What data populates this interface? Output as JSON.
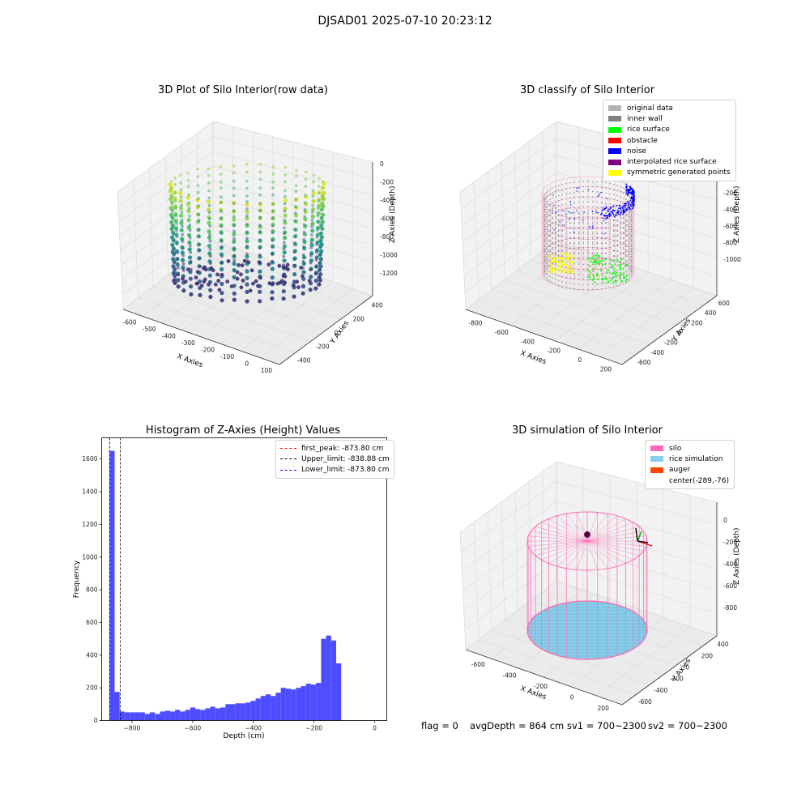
{
  "figure": {
    "suptitle": "DJSAD01 2025-07-10 20:23:12"
  },
  "colors": {
    "original_data": "#b3b3b3",
    "inner_wall": "#808080",
    "rice_surface": "#00ff00",
    "obstacle": "#ff0000",
    "noise": "#0000ff",
    "interpolated": "#800080",
    "symmetric": "#ffff00",
    "silo": "#ff69b4",
    "rice_sim": "#87ceeb",
    "auger": "#ff4500",
    "hist_bar": "#4d4dff"
  },
  "chart_data": [
    {
      "type": "scatter",
      "title": "3D Plot of Silo Interior(row data)",
      "xlabel": "X Axies",
      "ylabel": "Y Axies",
      "zlabel": "Z Axies (Depth)",
      "x_ticks": [
        "-600",
        "-500",
        "-400",
        "-300",
        "-200",
        "-100",
        "0",
        "100"
      ],
      "y_ticks": [
        "400",
        "200",
        "0",
        "-200",
        "-400"
      ],
      "z_ticks": [
        "0",
        "-200",
        "-400",
        "-600",
        "-800",
        "-1000",
        "-1200"
      ],
      "colormap": "viridis"
    },
    {
      "type": "scatter",
      "title": "3D classify of Silo Interior",
      "xlabel": "X Axies",
      "ylabel": "Y Axies",
      "zlabel": "Z Axies (Depth)",
      "x_ticks": [
        "-800",
        "-600",
        "-400",
        "-200",
        "0",
        "200"
      ],
      "y_ticks": [
        "600",
        "400",
        "200",
        "0",
        "-200",
        "-400",
        "-600"
      ],
      "z_ticks": [
        "-200",
        "-400",
        "-600",
        "-800",
        "-1000"
      ],
      "legend_position": "top-right",
      "legend": [
        {
          "label": "original data",
          "color": "#b3b3b3"
        },
        {
          "label": "inner wall",
          "color": "#808080"
        },
        {
          "label": "rice surface",
          "color": "#00ff00"
        },
        {
          "label": "obstacle",
          "color": "#ff0000"
        },
        {
          "label": "noise",
          "color": "#0000ff"
        },
        {
          "label": "interpolated rice surface",
          "color": "#800080"
        },
        {
          "label": "symmetric generated points",
          "color": "#ffff00"
        }
      ]
    },
    {
      "type": "bar",
      "title": "Histogram of Z-Axies (Height) Values",
      "xlabel": "Depth (cm)",
      "ylabel": "Frequency",
      "xlim": [
        -900,
        40
      ],
      "ylim": [
        0,
        1730
      ],
      "x_ticks": [
        -800,
        -600,
        -400,
        -200,
        0
      ],
      "y_ticks": [
        0,
        200,
        400,
        600,
        800,
        1000,
        1200,
        1400,
        1600
      ],
      "bin_start": -873.8,
      "bin_width": 16.6,
      "values": [
        1650,
        175,
        55,
        50,
        50,
        50,
        50,
        40,
        50,
        40,
        55,
        60,
        55,
        65,
        55,
        65,
        80,
        70,
        65,
        75,
        85,
        75,
        80,
        100,
        100,
        105,
        105,
        110,
        120,
        135,
        150,
        160,
        150,
        170,
        200,
        195,
        190,
        200,
        210,
        225,
        220,
        230,
        500,
        520,
        490,
        350
      ],
      "lines": [
        {
          "label": "first_peak: -873.80 cm",
          "value": -873.8,
          "color": "#ff0000"
        },
        {
          "label": "Upper_limit: -838.88 cm",
          "value": -838.88,
          "color": "#000000"
        },
        {
          "label": "Lower_limit: -873.80 cm",
          "value": -873.8,
          "color": "#0000ff"
        }
      ],
      "legend_position": "top-right"
    },
    {
      "type": "scatter",
      "title": "3D simulation of Silo Interior",
      "xlabel": "X Axies",
      "ylabel": "Y Axies",
      "zlabel": "Z Axies (Depth)",
      "x_ticks": [
        "-600",
        "-400",
        "-200",
        "0",
        "200"
      ],
      "y_ticks": [
        "400",
        "200",
        "0",
        "-200",
        "-400",
        "-600"
      ],
      "z_ticks": [
        "0",
        "-200",
        "-400",
        "-600",
        "-800"
      ],
      "legend_position": "top-right",
      "legend": [
        {
          "label": "silo",
          "color": "#ff69b4"
        },
        {
          "label": "rice simulation",
          "color": "#87ceeb"
        },
        {
          "label": "auger",
          "color": "#ff4500"
        },
        {
          "label": "center(-289,-76)",
          "color": ""
        }
      ]
    }
  ],
  "footer": {
    "flag": "flag = 0",
    "avg_depth": "avgDepth = 864 cm",
    "sv1": "sv1 = 700~2300",
    "sv2": "sv2 = 700~2300"
  }
}
